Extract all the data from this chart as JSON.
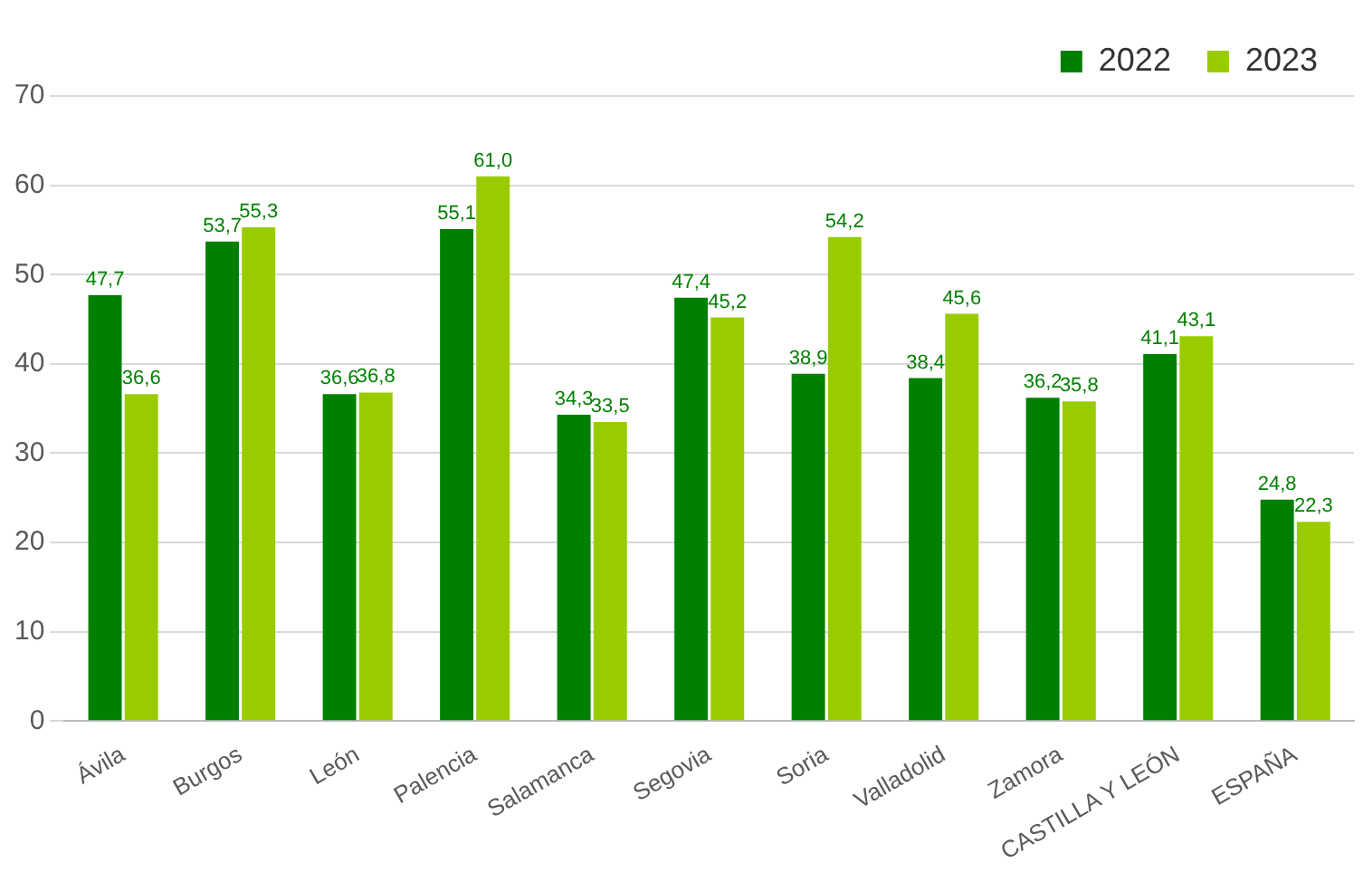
{
  "chart_data": {
    "type": "bar",
    "categories": [
      "Ávila",
      "Burgos",
      "León",
      "Palencia",
      "Salamanca",
      "Segovia",
      "Soria",
      "Valladolid",
      "Zamora",
      "CASTILLA Y LEÓN",
      "ESPAÑA"
    ],
    "series": [
      {
        "name": "2022",
        "color": "#008000",
        "values": [
          47.7,
          53.7,
          36.6,
          55.1,
          34.3,
          47.4,
          38.9,
          38.4,
          36.2,
          41.1,
          24.8
        ],
        "value_labels": [
          "47,7",
          "53,7",
          "36,6",
          "55,1",
          "34,3",
          "47,4",
          "38,9",
          "38,4",
          "36,2",
          "41,1",
          "24,8"
        ]
      },
      {
        "name": "2023",
        "color": "#99cc00",
        "values": [
          36.6,
          55.3,
          36.8,
          61.0,
          33.5,
          45.2,
          54.2,
          45.6,
          35.8,
          43.1,
          22.3
        ],
        "value_labels": [
          "36,6",
          "55,3",
          "36,8",
          "61,0",
          "33,5",
          "45,2",
          "54,2",
          "45,6",
          "35,8",
          "43,1",
          "22,3"
        ]
      }
    ],
    "ylim": [
      0,
      70
    ],
    "yticks": [
      0,
      10,
      20,
      30,
      40,
      50,
      60,
      70
    ],
    "grid": "y",
    "legend": "top right"
  }
}
